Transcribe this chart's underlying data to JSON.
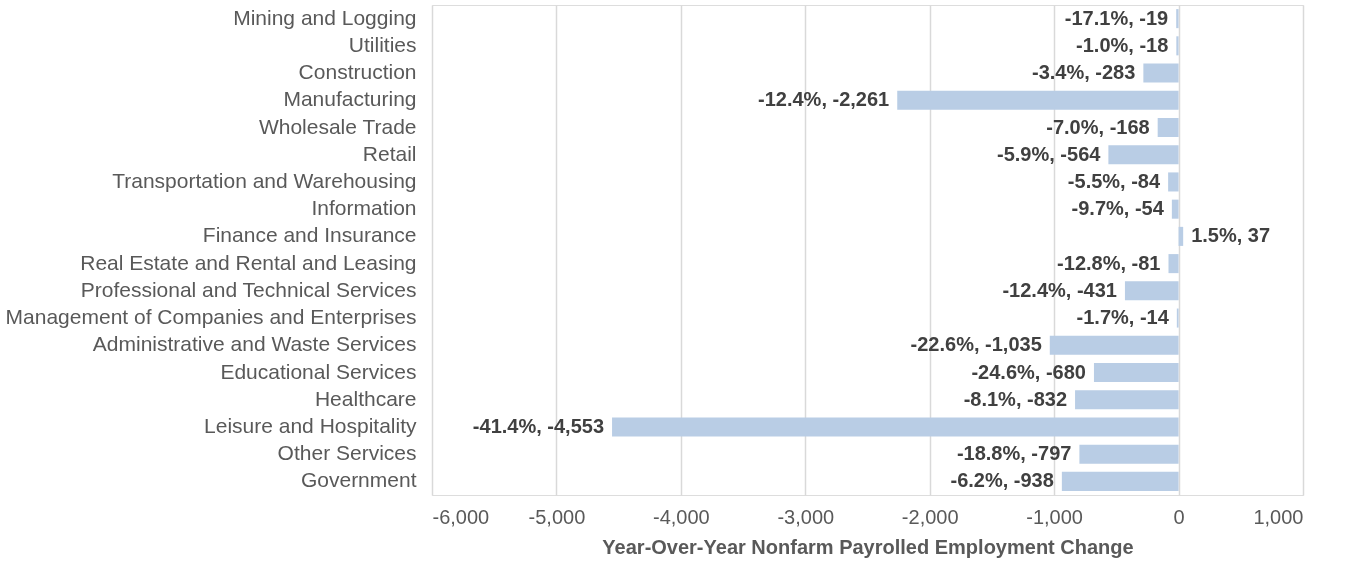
{
  "chart_data": {
    "type": "bar",
    "orientation": "horizontal",
    "xlabel": "Year-Over-Year Nonfarm Payrolled Employment Change",
    "categories": [
      "Mining and Logging",
      "Utilities",
      "Construction",
      "Manufacturing",
      "Wholesale Trade",
      "Retail",
      "Transportation and Warehousing",
      "Information",
      "Finance and Insurance",
      "Real Estate and Rental and Leasing",
      "Professional and Technical Services",
      "Management of Companies and Enterprises",
      "Administrative and Waste Services",
      "Educational Services",
      "Healthcare",
      "Leisure and Hospitality",
      "Other Services",
      "Government"
    ],
    "values": [
      -19,
      -18,
      -283,
      -2261,
      -168,
      -564,
      -84,
      -54,
      37,
      -81,
      -431,
      -14,
      -1035,
      -680,
      -832,
      -4553,
      -797,
      -938
    ],
    "value_labels": [
      "-17.1%, -19",
      "-1.0%, -18",
      "-3.4%, -283",
      "-12.4%, -2,261",
      "-7.0%, -168",
      "-5.9%, -564",
      "-5.5%, -84",
      "-9.7%, -54",
      "1.5%, 37",
      "-12.8%, -81",
      "-12.4%, -431",
      "-1.7%, -14",
      "-22.6%, -1,035",
      "-24.6%, -680",
      "-8.1%, -832",
      "-41.4%, -4,553",
      "-18.8%, -797",
      "-6.2%, -938"
    ],
    "color": "#b9cde5",
    "xlim": [
      -6000,
      1000
    ],
    "xticks": [
      {
        "value": -6000,
        "label": "-6,000"
      },
      {
        "value": -5000,
        "label": "-5,000"
      },
      {
        "value": -4000,
        "label": "-4,000"
      },
      {
        "value": -3000,
        "label": "-3,000"
      },
      {
        "value": -2000,
        "label": "-2,000"
      },
      {
        "value": -1000,
        "label": "-1,000"
      },
      0,
      {
        "value": 1000,
        "label": "1,000"
      }
    ],
    "grid": "x"
  }
}
